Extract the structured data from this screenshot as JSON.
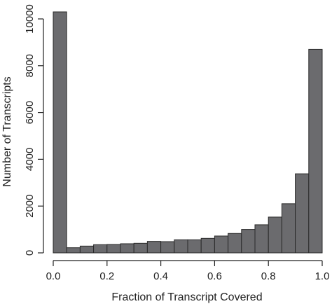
{
  "chart_data": {
    "type": "bar",
    "title": "",
    "xlabel": "Fraction of Transcript Covered",
    "ylabel": "Number of Transcripts",
    "bin_edges": [
      0,
      0.05,
      0.1,
      0.15,
      0.2,
      0.25,
      0.3,
      0.35,
      0.4,
      0.45,
      0.5,
      0.55,
      0.6,
      0.65,
      0.7,
      0.75,
      0.8,
      0.85,
      0.9,
      0.95,
      1.0
    ],
    "values": [
      10300,
      220,
      290,
      350,
      360,
      390,
      410,
      490,
      480,
      560,
      560,
      620,
      720,
      830,
      1000,
      1200,
      1530,
      2100,
      3380,
      8700
    ],
    "xlim": [
      0,
      1
    ],
    "ylim": [
      0,
      10300
    ],
    "xticks": [
      "0.0",
      "0.2",
      "0.4",
      "0.6",
      "0.8",
      "1.0"
    ],
    "yticks": [
      "0",
      "2000",
      "4000",
      "6000",
      "8000",
      "10000"
    ],
    "grid": false,
    "bar_color": "#6b6b6e"
  }
}
